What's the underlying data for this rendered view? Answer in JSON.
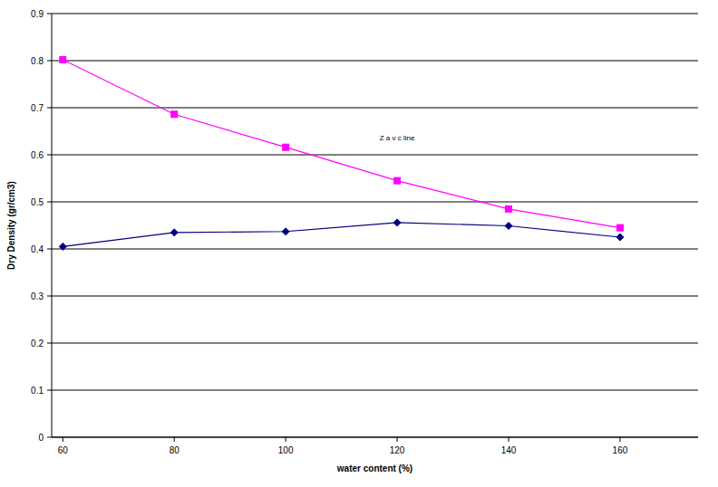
{
  "chart_data": {
    "type": "line",
    "x_label": "water content (%)",
    "y_label": "Dry Density (gr/cm3)",
    "x": [
      60,
      80,
      100,
      120,
      140,
      160
    ],
    "series": [
      {
        "color": "#000080",
        "marker": "diamond",
        "values": [
          0.405,
          0.435,
          0.437,
          0.456,
          0.449,
          0.425
        ]
      },
      {
        "name": "Z a v c line",
        "color": "#ff00ff",
        "marker": "square",
        "values": [
          0.802,
          0.686,
          0.616,
          0.545,
          0.485,
          0.445
        ]
      }
    ],
    "xlim": [
      58,
      174
    ],
    "xticks": [
      60,
      80,
      100,
      120,
      140,
      160
    ],
    "ylim": [
      0,
      0.9
    ],
    "yticks": [
      0,
      0.1,
      0.2,
      0.3,
      0.4,
      0.5,
      0.6,
      0.7,
      0.8,
      0.9
    ],
    "grid": true
  }
}
